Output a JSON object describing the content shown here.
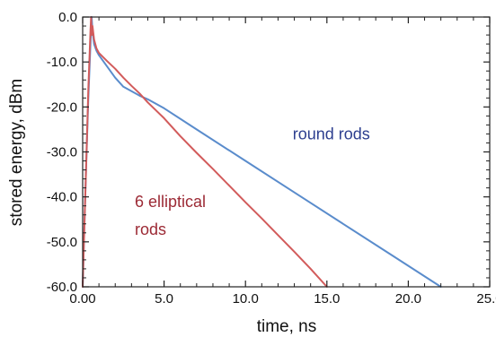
{
  "chart_data": {
    "type": "line",
    "title": "",
    "xlabel": "time, ns",
    "ylabel": "stored energy, dBm",
    "xlim": [
      0,
      25
    ],
    "ylim": [
      -60,
      0
    ],
    "grid": false,
    "x_ticks": [
      "0.00",
      "5.0",
      "10.0",
      "15.0",
      "20.0",
      "25.0"
    ],
    "y_ticks": [
      "0.0",
      "-10.0",
      "-20.0",
      "-30.0",
      "-40.0",
      "-50.0",
      "-60.0"
    ],
    "x_tick_values": [
      0,
      5,
      10,
      15,
      20,
      25
    ],
    "y_tick_values": [
      0,
      -10,
      -20,
      -30,
      -40,
      -50,
      -60
    ],
    "annotations": [
      {
        "text": "round rods",
        "x": 12.9,
        "y": -27.2,
        "color": "#2d3f8f"
      },
      {
        "text": "6 elliptical",
        "x": 3.2,
        "y": -42.3,
        "color": "#9c2a35"
      },
      {
        "text": "rods",
        "x": 3.2,
        "y": -48.4,
        "color": "#9c2a35"
      }
    ],
    "series": [
      {
        "color": "#5a8ccc",
        "x": [
          0.0,
          0.08,
          0.2,
          0.35,
          0.5,
          0.55,
          0.6,
          0.7,
          0.85,
          1.0,
          1.3,
          1.6,
          2.0,
          2.5,
          3.0,
          3.5,
          4.0,
          5.0,
          7.0,
          10.0,
          13.0,
          16.0,
          19.0,
          22.0
        ],
        "values": [
          -60,
          -50,
          -35,
          -18,
          -4,
          0,
          -3,
          -6,
          -7.5,
          -8.5,
          -10,
          -11.5,
          -13.5,
          -15.5,
          -16.5,
          -17.5,
          -18.3,
          -20.3,
          -25,
          -32,
          -39,
          -46,
          -53,
          -60
        ]
      },
      {
        "color": "#d25b5b",
        "x": [
          0.0,
          0.08,
          0.2,
          0.35,
          0.48,
          0.52,
          0.55,
          0.6,
          0.7,
          0.85,
          1.0,
          1.5,
          2.0,
          2.5,
          3.0,
          3.5,
          4.0,
          5.0,
          6.0,
          7.0,
          8.0,
          9.0,
          10.0,
          11.0,
          12.0,
          13.0,
          14.0,
          15.0
        ],
        "values": [
          -60,
          -50,
          -35,
          -16,
          -3,
          0,
          -4,
          -2,
          -5,
          -7,
          -8,
          -9.8,
          -11.5,
          -13.5,
          -15.3,
          -17.0,
          -19.0,
          -22.5,
          -26.5,
          -30.2,
          -33.8,
          -37.5,
          -41.2,
          -44.8,
          -48.5,
          -52.2,
          -56.0,
          -60.0
        ]
      }
    ]
  }
}
